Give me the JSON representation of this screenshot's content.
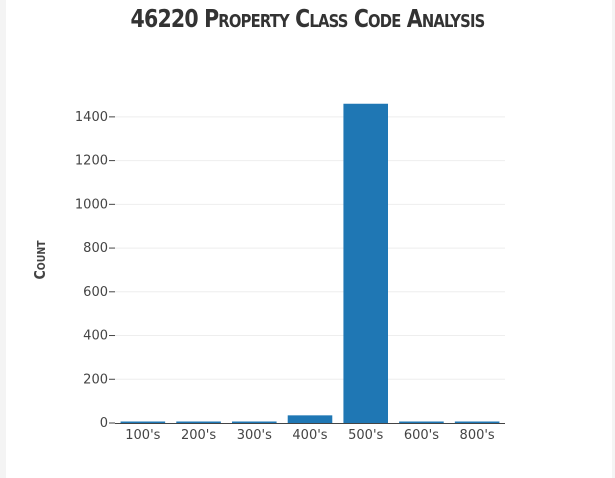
{
  "chart_data": {
    "type": "bar",
    "title": "46220 Property Class Code Analysis",
    "xlabel": "",
    "ylabel": "Count",
    "categories": [
      "100's",
      "200's",
      "300's",
      "400's",
      "500's",
      "600's",
      "800's"
    ],
    "values": [
      4,
      1,
      4,
      35,
      1460,
      4,
      4
    ],
    "ylim": [
      0,
      1500
    ],
    "yticks": [
      0,
      200,
      400,
      600,
      800,
      1000,
      1200,
      1400
    ],
    "grid": true,
    "colors": {
      "bar": "#1f77b4",
      "grid": "#eeeeee",
      "axis": "#444444"
    }
  }
}
